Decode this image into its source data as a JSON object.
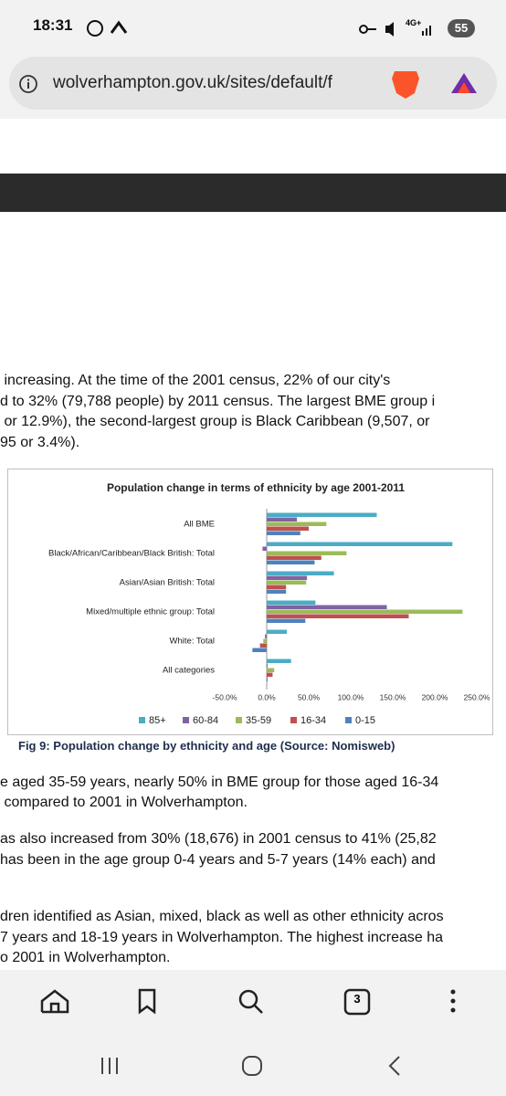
{
  "status_bar": {
    "time": "18:31",
    "network": "4G+",
    "battery": 55
  },
  "browser": {
    "url": "wolverhampton.gov.uk/sites/default/f",
    "tab_count": 3
  },
  "document": {
    "paragraph_1": [
      " increasing. At the time of the 2001 census, 22% of our city's",
      "d to 32% (79,788 people) by 2011 census. The largest BME group i",
      " or 12.9%), the second-largest group is Black Caribbean (9,507, or",
      "95 or 3.4%)."
    ],
    "caption": "Fig 9: Population change by ethnicity and age (Source: Nomisweb)",
    "paragraph_2": [
      "e aged 35-59 years, nearly 50% in BME group for those aged 16-34",
      " compared to 2001 in Wolverhampton."
    ],
    "paragraph_3": [
      "as also increased from 30% (18,676) in 2001 census to 41% (25,82",
      "has been in the age group 0-4 years and 5-7 years (14% each) and"
    ],
    "paragraph_4": [
      "dren identified as Asian, mixed, black as well as other ethnicity acros",
      "7 years and 18-19 years in Wolverhampton. The highest increase ha",
      "o 2001 in Wolverhampton."
    ]
  },
  "chart_data": {
    "type": "bar",
    "orientation": "horizontal",
    "title": "Population change in terms of ethnicity by age 2001-2011",
    "categories": [
      "All BME",
      "Black/African/Caribbean/Black British: Total",
      "Asian/Asian British: Total",
      "Mixed/multiple ethnic group: Total",
      "White: Total",
      "All categories"
    ],
    "series": [
      {
        "name": "85+",
        "color": "#4bacc6",
        "values": [
          131,
          221,
          80,
          58,
          24,
          29
        ]
      },
      {
        "name": "60-84",
        "color": "#8064a2",
        "values": [
          36,
          -5,
          48,
          143,
          -2,
          1
        ]
      },
      {
        "name": "35-59",
        "color": "#9bbb59",
        "values": [
          71,
          95,
          47,
          233,
          -4,
          9
        ]
      },
      {
        "name": "16-34",
        "color": "#c0504d",
        "values": [
          50,
          65,
          23,
          169,
          -8,
          7
        ]
      },
      {
        "name": "0-15",
        "color": "#4f81bd",
        "values": [
          40,
          57,
          23,
          46,
          -17,
          1
        ]
      }
    ],
    "xlim": [
      -50,
      250
    ],
    "xticks": [
      {
        "value": -50,
        "label": "-50.0%"
      },
      {
        "value": 0,
        "label": "0.0%"
      },
      {
        "value": 50,
        "label": "50.0%"
      },
      {
        "value": 100,
        "label": "100.0%"
      },
      {
        "value": 150,
        "label": "150.0%"
      },
      {
        "value": 200,
        "label": "200.0%"
      },
      {
        "value": 250,
        "label": "250.0%"
      }
    ],
    "legend": "bottom"
  }
}
